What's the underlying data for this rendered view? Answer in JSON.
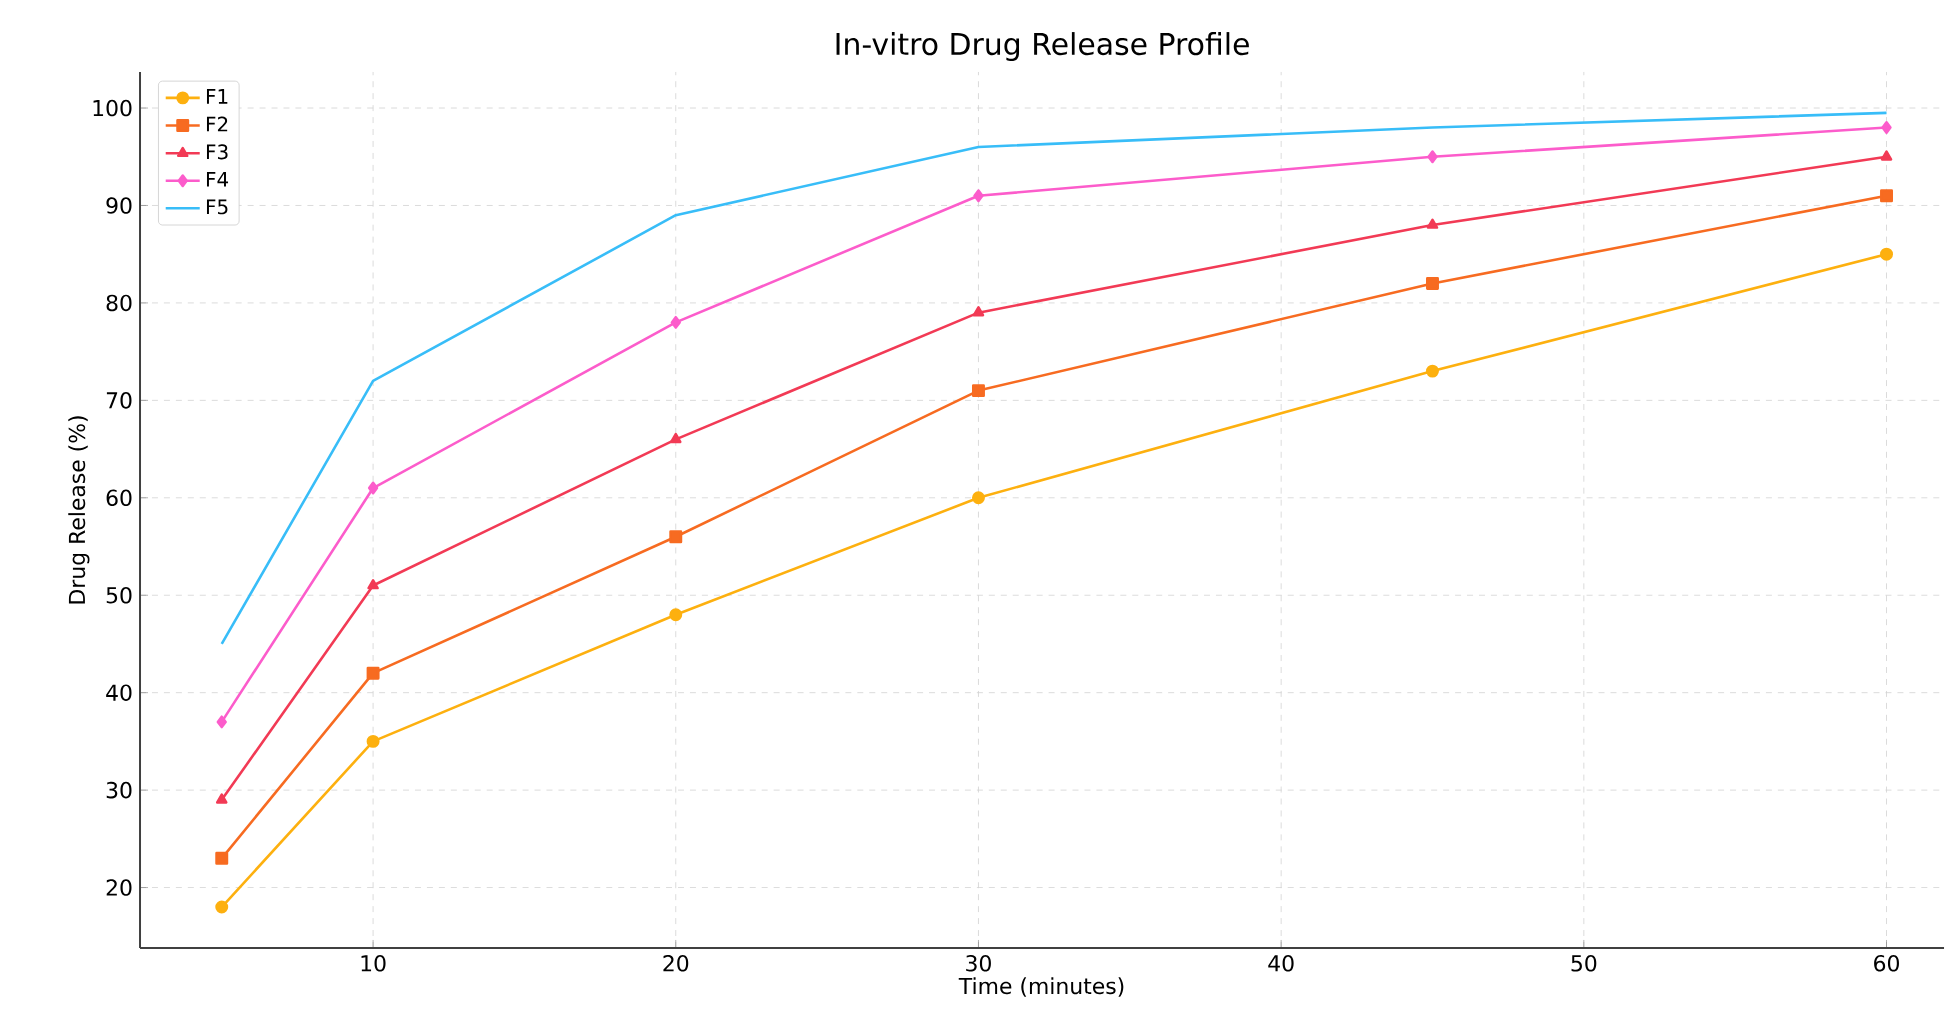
{
  "chart_data": {
    "type": "line",
    "title": "In-vitro Drug Release Profile",
    "xlabel": "Time (minutes)",
    "ylabel": "Drug Release (%)",
    "x": [
      5,
      10,
      20,
      30,
      45,
      60
    ],
    "series": [
      {
        "name": "F1",
        "color": "#fdb00f",
        "marker": "circle",
        "values": [
          18,
          35,
          48,
          60,
          73,
          85
        ]
      },
      {
        "name": "F2",
        "color": "#f76b21",
        "marker": "square",
        "values": [
          23,
          42,
          56,
          71,
          82,
          91
        ]
      },
      {
        "name": "F3",
        "color": "#f23a55",
        "marker": "triangle",
        "values": [
          29,
          51,
          66,
          79,
          88,
          95
        ]
      },
      {
        "name": "F4",
        "color": "#fc5ccb",
        "marker": "diamond",
        "values": [
          37,
          61,
          78,
          91,
          95,
          98
        ]
      },
      {
        "name": "F5",
        "color": "#38bdf8",
        "marker": "none",
        "values": [
          45,
          72,
          89,
          96,
          98,
          99.5
        ]
      }
    ],
    "xlim": [
      2.3,
      61.9
    ],
    "ylim": [
      13.8,
      103.7
    ],
    "xticks": [
      10,
      20,
      30,
      40,
      50,
      60
    ],
    "yticks": [
      20,
      30,
      40,
      50,
      60,
      70,
      80,
      90,
      100
    ],
    "grid": true,
    "legend": "top left",
    "line_style": "solid"
  }
}
